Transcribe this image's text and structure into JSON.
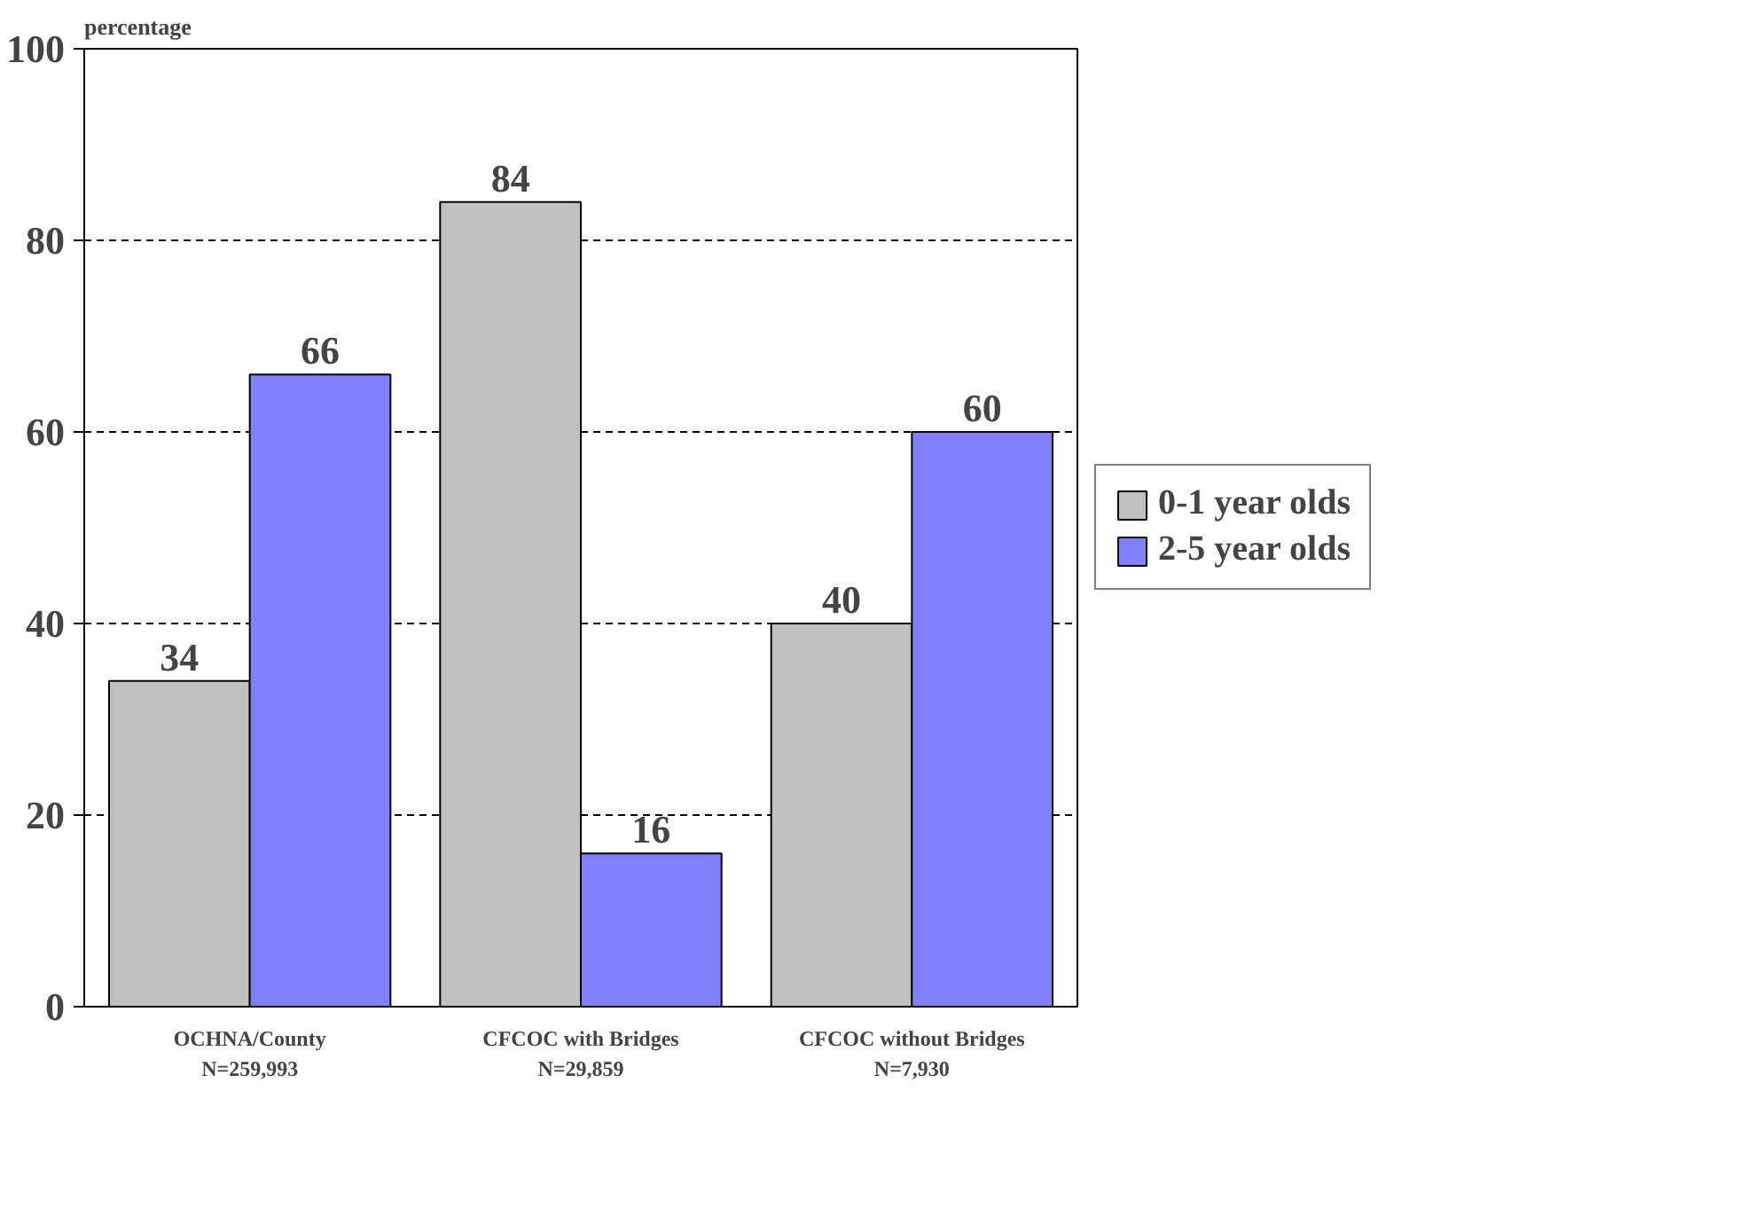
{
  "chart_data": {
    "type": "bar",
    "ylabel": "percentage",
    "categories": [
      "OCHNA/County\nN=259,993",
      "CFCOC with Bridges\nN=29,859",
      "CFCOC without Bridges\nN=7,930"
    ],
    "series": [
      {
        "name": "0-1 year olds",
        "color": "#c0c0c0",
        "values": [
          34,
          84,
          40
        ]
      },
      {
        "name": "2-5 year olds",
        "color": "#8080ff",
        "values": [
          66,
          16,
          60
        ]
      }
    ],
    "ylim": [
      0,
      100
    ],
    "yticks": [
      0,
      20,
      40,
      60,
      80,
      100
    ],
    "grid": "y",
    "legend": "right",
    "data_labels": true
  }
}
